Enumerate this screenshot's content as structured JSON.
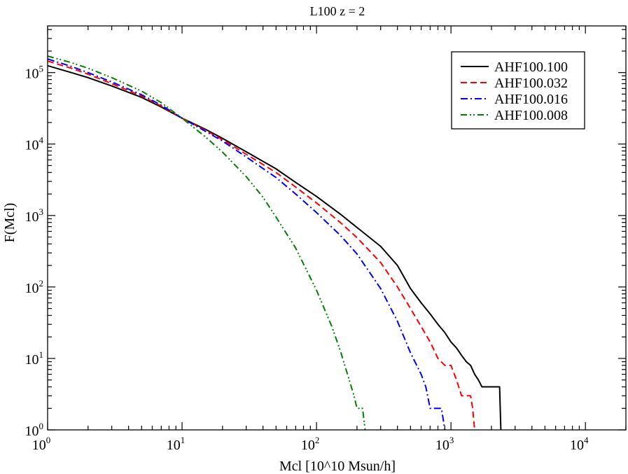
{
  "chart_data": {
    "type": "line",
    "title": "L100 z = 2",
    "xlabel": "Mcl [10^10 Msun/h]",
    "ylabel": "F(Mcl)",
    "xscale": "log",
    "yscale": "log",
    "xlim": [
      1,
      20000
    ],
    "ylim": [
      1,
      450000
    ],
    "grid": false,
    "legend_position": "top-right",
    "x_ticks": [
      {
        "base": "10",
        "exp": "0",
        "value": 1
      },
      {
        "base": "10",
        "exp": "1",
        "value": 10
      },
      {
        "base": "10",
        "exp": "2",
        "value": 100
      },
      {
        "base": "10",
        "exp": "3",
        "value": 1000
      },
      {
        "base": "10",
        "exp": "4",
        "value": 10000
      }
    ],
    "y_ticks": [
      {
        "base": "10",
        "exp": "0",
        "value": 1
      },
      {
        "base": "10",
        "exp": "1",
        "value": 10
      },
      {
        "base": "10",
        "exp": "2",
        "value": 100
      },
      {
        "base": "10",
        "exp": "3",
        "value": 1000
      },
      {
        "base": "10",
        "exp": "4",
        "value": 10000
      },
      {
        "base": "10",
        "exp": "5",
        "value": 100000
      }
    ],
    "series": [
      {
        "name": "AHF100.100",
        "color": "#000000",
        "style": "solid",
        "x": [
          1,
          1.5,
          2,
          3,
          5,
          7,
          10,
          15,
          20,
          30,
          50,
          70,
          100,
          150,
          200,
          300,
          400,
          500,
          600,
          700,
          800,
          900,
          1000,
          1100,
          1200,
          1300,
          1400,
          1500,
          1600,
          1700,
          1800,
          1900,
          2000,
          2100,
          2200,
          2300,
          2350
        ],
        "y": [
          125000,
          100000,
          85000,
          65000,
          45000,
          33000,
          23000,
          16000,
          12000,
          7800,
          4500,
          2900,
          1850,
          1050,
          680,
          370,
          200,
          95,
          60,
          42,
          30,
          23,
          17,
          14,
          11,
          9,
          8,
          6,
          5,
          4,
          4,
          4,
          4,
          4,
          4,
          4,
          1
        ]
      },
      {
        "name": "AHF100.032",
        "color": "#ff0000",
        "style": "dashed",
        "x": [
          1,
          1.5,
          2,
          3,
          5,
          7,
          10,
          15,
          20,
          30,
          50,
          70,
          100,
          150,
          200,
          300,
          400,
          500,
          600,
          700,
          800,
          900,
          1000,
          1100,
          1200,
          1300,
          1400,
          1450,
          1500
        ],
        "y": [
          145000,
          115000,
          95000,
          70000,
          47000,
          34000,
          23000,
          15500,
          11500,
          7200,
          4000,
          2500,
          1500,
          800,
          490,
          220,
          100,
          50,
          28,
          17,
          10,
          8,
          8,
          5,
          3,
          3,
          3,
          2,
          1
        ]
      },
      {
        "name": "AHF100.016",
        "color": "#0000ff",
        "style": "dash-dot",
        "x": [
          1,
          1.5,
          2,
          3,
          5,
          7,
          10,
          15,
          20,
          30,
          50,
          70,
          100,
          150,
          200,
          300,
          400,
          500,
          600,
          650,
          700,
          750,
          800,
          850,
          900
        ],
        "y": [
          155000,
          122000,
          100000,
          74000,
          49000,
          35000,
          23000,
          15000,
          11000,
          6600,
          3400,
          2000,
          1100,
          530,
          290,
          95,
          33,
          12,
          6,
          4,
          2,
          2,
          2,
          2,
          1
        ]
      },
      {
        "name": "AHF100.008",
        "color": "#008000",
        "style": "dash-dot-dot",
        "x": [
          1,
          1.5,
          2,
          3,
          5,
          7,
          10,
          15,
          20,
          30,
          40,
          50,
          70,
          100,
          130,
          150,
          170,
          190,
          200,
          210,
          220,
          230
        ],
        "y": [
          170000,
          138000,
          115000,
          85000,
          55000,
          38000,
          23000,
          12500,
          7700,
          3500,
          1800,
          950,
          350,
          90,
          28,
          13,
          6,
          3,
          2,
          2,
          2,
          1
        ]
      }
    ]
  }
}
